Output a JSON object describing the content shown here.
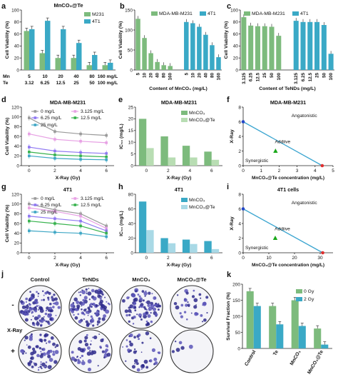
{
  "colors": {
    "green": "#7dbb7d",
    "teal": "#3aa9c6",
    "light_green": "#b8ddb3",
    "light_teal": "#a9d9e6",
    "line_gray": "#9a9a9a",
    "line_pink": "#e7a1e4",
    "line_purple": "#8f78f2",
    "line_green": "#37b24d",
    "line_teal": "#3fa7c5",
    "diag_blue": "#3ba5d0",
    "diag_green": "#1aa81a"
  },
  "chart_data": [
    {
      "panel": "a",
      "type": "bar",
      "title": "MnCO₃@Te",
      "ylabel": "Cell Viability (%)",
      "ylim": [
        0,
        100
      ],
      "yticks": [
        "0",
        "20",
        "40",
        "60",
        "80",
        "100"
      ],
      "row1_label": "Mn",
      "row2_label": "Te",
      "mn_values": [
        "5",
        "10",
        "20",
        "40",
        "80",
        "160 mg/L"
      ],
      "te_values": [
        "3.12",
        "6.25",
        "12.5",
        "25",
        "50",
        "100 mg/L"
      ],
      "series": [
        {
          "name": "M231",
          "values": [
            65,
            28,
            20,
            20,
            8,
            8
          ]
        },
        {
          "name": "4T1",
          "values": [
            68,
            82,
            68,
            45,
            25,
            12
          ]
        }
      ]
    },
    {
      "panel": "b",
      "type": "bar",
      "ylabel": "Cell Viability (%)",
      "ylim": [
        0,
        150
      ],
      "yticks": [
        "0",
        "50",
        "100",
        "150"
      ],
      "xlabel": "Content of MnCO₃ (mg/L)",
      "categories": [
        "5",
        "10",
        "20",
        "40",
        "80",
        "160"
      ],
      "series": [
        {
          "name": "MDA-MB-M231",
          "values": [
            128,
            80,
            42,
            20,
            12,
            10
          ]
        },
        {
          "name": "4T1",
          "values": [
            120,
            117,
            108,
            88,
            62,
            32
          ]
        }
      ]
    },
    {
      "panel": "c",
      "type": "bar",
      "ylabel": "Cell Viability (%)",
      "ylim": [
        0,
        100
      ],
      "yticks": [
        "0",
        "20",
        "40",
        "60",
        "80",
        "100"
      ],
      "xlabel": "Content of TeNDs (mg/L)",
      "categories": [
        "3.125",
        "6.25",
        "12.5",
        "25",
        "50",
        "100"
      ],
      "series": [
        {
          "name": "MDA-MB-M231",
          "values": [
            88,
            74,
            73,
            73,
            72,
            57
          ]
        },
        {
          "name": "4T1",
          "values": [
            82,
            80,
            80,
            80,
            75,
            27
          ]
        }
      ]
    },
    {
      "panel": "d",
      "type": "line",
      "title": "MDA-MB-M231",
      "ylabel": "Cell Viability (%)",
      "xlabel": "X-Ray (Gy)",
      "ylim": [
        0,
        120
      ],
      "yticks": [
        "0",
        "20",
        "40",
        "60",
        "80",
        "100",
        "120"
      ],
      "x": [
        0,
        2,
        4,
        6
      ],
      "xticks": [
        "0",
        "2",
        "4",
        "6"
      ],
      "series": [
        {
          "name": "0 mg/L",
          "values": [
            98,
            70,
            65,
            62
          ]
        },
        {
          "name": "3.125 mg/L",
          "values": [
            65,
            54,
            50,
            47
          ]
        },
        {
          "name": "6.25 mg/L",
          "values": [
            38,
            30,
            27,
            25
          ]
        },
        {
          "name": "12.5 mg/L",
          "values": [
            28,
            22,
            20,
            18
          ]
        },
        {
          "name": "25 mg/L",
          "values": [
            20,
            15,
            13,
            12
          ]
        }
      ]
    },
    {
      "panel": "e",
      "type": "bar",
      "title": "MDA-MB-M231",
      "ylabel": "IC₅₀ (mg/L)",
      "xlabel": "X-Ray (Gy)",
      "ylim": [
        0,
        25
      ],
      "yticks": [
        "0",
        "5",
        "10",
        "15",
        "20",
        "25"
      ],
      "categories": [
        "0",
        "2",
        "4",
        "6"
      ],
      "series": [
        {
          "name": "MnCO₃",
          "values": [
            20,
            12.5,
            8.5,
            6
          ]
        },
        {
          "name": "MnCO₃@Te",
          "values": [
            7.5,
            3.5,
            3.5,
            2.5
          ]
        }
      ]
    },
    {
      "panel": "f",
      "type": "scatter",
      "title": "MDA-MB-M231",
      "ylabel": "X-Ray",
      "xlabel": "MnCO₃@Te concentration (mg/L)",
      "xlim": [
        0,
        5
      ],
      "ylim": [
        0,
        8
      ],
      "xticks": [
        "0",
        "1",
        "2",
        "3",
        "4",
        "5"
      ],
      "yticks": [
        "0",
        "2",
        "4",
        "6",
        "8"
      ],
      "line": {
        "x": [
          0,
          4.4
        ],
        "y": [
          6,
          0
        ]
      },
      "point": {
        "x": 1.8,
        "y": 2
      },
      "annotations": [
        "Angatonistic",
        "Addiive",
        "Synergistic"
      ]
    },
    {
      "panel": "g",
      "type": "line",
      "title": "4T1",
      "ylabel": "Cell Viability (%)",
      "xlabel": "X-Ray (Gy)",
      "ylim": [
        0,
        120
      ],
      "yticks": [
        "0",
        "20",
        "40",
        "60",
        "80",
        "100",
        "120"
      ],
      "x": [
        0,
        2,
        4,
        6
      ],
      "xticks": [
        "0",
        "2",
        "4",
        "6"
      ],
      "series": [
        {
          "name": "0 mg/L",
          "values": [
            100,
            88,
            80,
            55
          ]
        },
        {
          "name": "3.125 mg/L",
          "values": [
            92,
            85,
            75,
            50
          ]
        },
        {
          "name": "6.25 mg/L",
          "values": [
            75,
            70,
            65,
            45
          ]
        },
        {
          "name": "12.5 mg/L",
          "values": [
            65,
            60,
            55,
            40
          ]
        },
        {
          "name": "25 mg/L",
          "values": [
            45,
            42,
            40,
            33
          ]
        }
      ]
    },
    {
      "panel": "h",
      "type": "bar",
      "title": "4T1",
      "ylabel": "IC₅₀ (mg/L)",
      "xlabel": "X-Ray (Gy)",
      "ylim": [
        0,
        80
      ],
      "yticks": [
        "0",
        "20",
        "40",
        "60",
        "80"
      ],
      "categories": [
        "0",
        "2",
        "4",
        "6"
      ],
      "series": [
        {
          "name": "MnCO₃",
          "values": [
            70,
            20,
            18,
            16
          ]
        },
        {
          "name": "MnCO₃@Te",
          "values": [
            31,
            13,
            12,
            5
          ]
        }
      ]
    },
    {
      "panel": "i",
      "type": "scatter",
      "title": "4T1 cells",
      "ylabel": "X-Ray",
      "xlabel": "MnCO₃@Te concentration (mg/L)",
      "xlim": [
        0,
        35
      ],
      "ylim": [
        0,
        8
      ],
      "xticks": [
        "0",
        "10",
        "20",
        "30"
      ],
      "yticks": [
        "0",
        "2",
        "4",
        "6",
        "8"
      ],
      "line": {
        "x": [
          0,
          31
        ],
        "y": [
          6,
          0
        ]
      },
      "point": {
        "x": 12.5,
        "y": 2
      },
      "annotations": [
        "Angatonistic",
        "Addiive",
        "Synergistic"
      ]
    },
    {
      "panel": "k",
      "type": "bar",
      "ylabel": "Survival Fraction (%)",
      "ylim": [
        0,
        200
      ],
      "yticks": [
        "0",
        "50",
        "100",
        "150",
        "200"
      ],
      "categories": [
        "Control",
        "Te",
        "MnCO₃",
        "MnCO₃@Te"
      ],
      "series": [
        {
          "name": "0 Gy",
          "values": [
            178,
            132,
            150,
            62
          ]
        },
        {
          "name": "2 Gy",
          "values": [
            132,
            75,
            70,
            12
          ]
        }
      ]
    }
  ],
  "panel_j": {
    "label": "j",
    "columns": [
      "Control",
      "TeNDs",
      "MnCO₃",
      "MnCO₃@Te"
    ],
    "side_label": "X-Ray",
    "rows": [
      "-",
      "+"
    ],
    "densities": [
      [
        0.85,
        0.8,
        0.65,
        0.25
      ],
      [
        0.55,
        0.35,
        0.3,
        0.04
      ]
    ]
  }
}
